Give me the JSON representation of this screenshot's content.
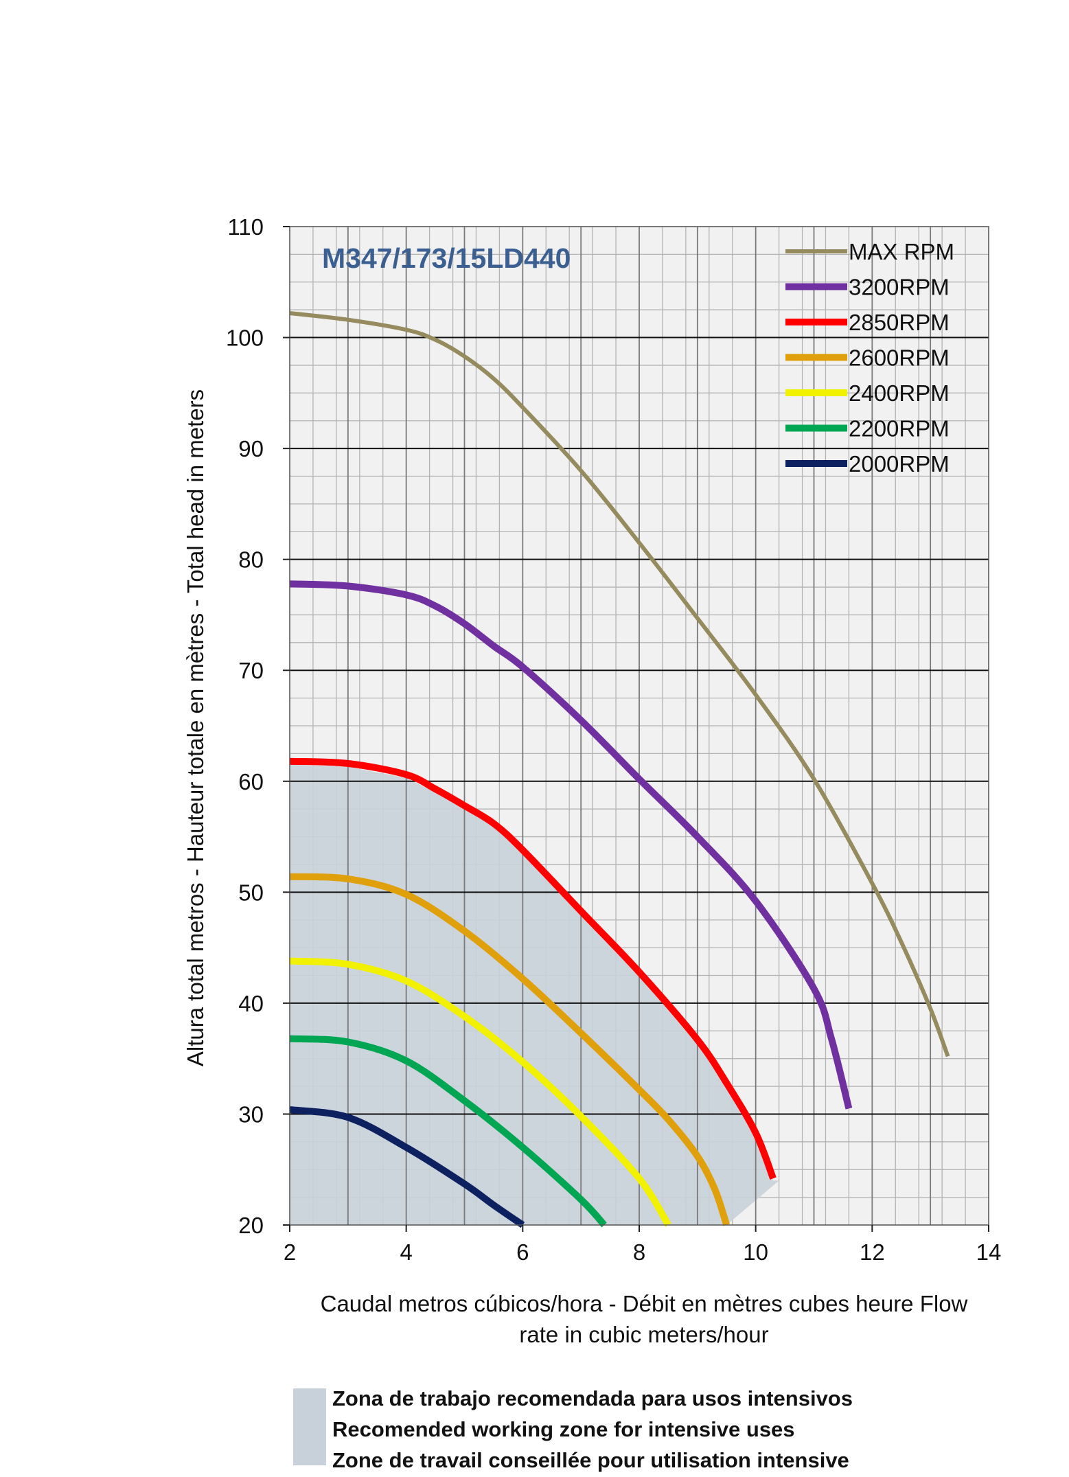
{
  "chart_data": {
    "type": "line",
    "title": "M347/173/15LD440",
    "xlabel_line1": "Caudal metros cúbicos/hora - Débit en mètres cubes heure  Flow",
    "xlabel_line2": "rate in cubic meters/hour",
    "ylabel": "Altura total metros - Hauteur totale en mètres - Total head in meters",
    "xlim": [
      2,
      14
    ],
    "ylim": [
      20,
      110
    ],
    "x_ticks": [
      "2",
      "4",
      "6",
      "8",
      "10",
      "12",
      "14"
    ],
    "y_ticks": [
      "20",
      "30",
      "40",
      "50",
      "60",
      "70",
      "80",
      "90",
      "100",
      "110"
    ],
    "series": [
      {
        "name": "MAX RPM",
        "color": "#958b5e",
        "x": [
          2,
          3,
          4,
          4.5,
          5,
          5.5,
          6,
          7,
          8,
          9,
          10,
          11,
          12,
          12.5,
          13,
          13.3
        ],
        "y": [
          102.2,
          101.6,
          100.7,
          99.8,
          98.3,
          96.3,
          93.7,
          88,
          81.5,
          74.7,
          67.8,
          60.2,
          50.8,
          45.5,
          39.5,
          35.2
        ]
      },
      {
        "name": "3200RPM",
        "color": "#7030a0",
        "x": [
          2,
          3,
          4,
          4.5,
          5,
          5.5,
          6,
          7,
          8,
          9,
          10,
          11,
          11.3,
          11.6
        ],
        "y": [
          77.8,
          77.6,
          76.8,
          75.8,
          74.2,
          72.2,
          70.3,
          65.5,
          60.2,
          55,
          49.2,
          41.3,
          36.8,
          30.5
        ]
      },
      {
        "name": "2850RPM",
        "color": "#ff0000",
        "x": [
          2,
          3,
          4,
          4.5,
          5,
          5.5,
          6,
          7,
          8,
          9,
          9.5,
          10,
          10.3
        ],
        "y": [
          61.8,
          61.6,
          60.6,
          59.3,
          57.8,
          56.2,
          53.8,
          48.3,
          42.8,
          36.7,
          32.8,
          28.3,
          24.2
        ]
      },
      {
        "name": "2600RPM",
        "color": "#e0a00c",
        "x": [
          2,
          3,
          4,
          5,
          6,
          7,
          8,
          8.5,
          9,
          9.3,
          9.5
        ],
        "y": [
          51.4,
          51.2,
          49.8,
          46.5,
          42.2,
          37.3,
          32.2,
          29.5,
          26.2,
          23.2,
          20
        ]
      },
      {
        "name": "2400RPM",
        "color": "#f2f200",
        "x": [
          2,
          3,
          4,
          5,
          6,
          7,
          8,
          8.5
        ],
        "y": [
          43.8,
          43.5,
          42,
          38.8,
          34.7,
          29.8,
          24.2,
          20
        ]
      },
      {
        "name": "2200RPM",
        "color": "#00a651",
        "x": [
          2,
          3,
          4,
          5,
          6,
          7,
          7.4
        ],
        "y": [
          36.8,
          36.5,
          34.8,
          31.2,
          27,
          22.3,
          20
        ]
      },
      {
        "name": "2000RPM",
        "color": "#0d2060",
        "x": [
          2,
          3,
          4,
          5,
          5.5,
          6
        ],
        "y": [
          30.4,
          29.7,
          27,
          23.7,
          21.8,
          20
        ]
      }
    ],
    "recommended_zone": {
      "color": "#c8d0d9",
      "x": [
        2,
        3,
        4,
        4.5,
        5,
        5.5,
        6,
        7,
        8,
        9,
        9.5,
        10,
        10.3,
        10.4,
        9.5,
        2
      ],
      "y": [
        61.5,
        61.3,
        60.3,
        59,
        57.5,
        55.9,
        53.5,
        48,
        42.5,
        36.4,
        32.5,
        28,
        24,
        24,
        20,
        20
      ]
    },
    "legend_position": "top-right",
    "grid": true
  },
  "zone_legend": {
    "line1": "Zona de trabajo recomendada para usos intensivos",
    "line2": "Recomended working zone for intensive uses",
    "line3": "Zone de travail conseillée pour utilisation intensive"
  }
}
